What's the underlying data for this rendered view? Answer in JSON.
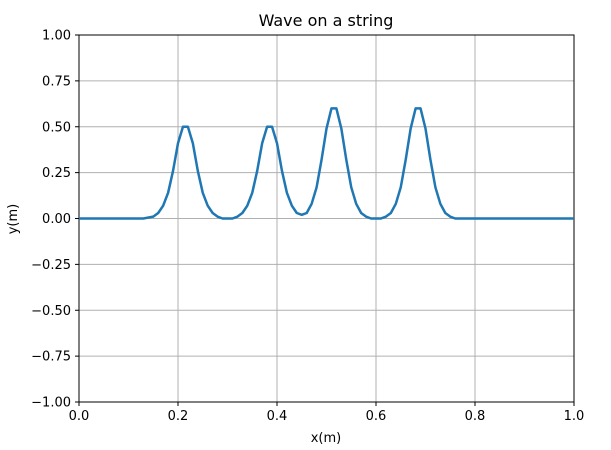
{
  "chart_data": {
    "type": "line",
    "title": "Wave on a string",
    "xlabel": "x(m)",
    "ylabel": "y(m)",
    "xlim": [
      0.0,
      1.0
    ],
    "ylim": [
      -1.0,
      1.0
    ],
    "grid": true,
    "x_ticks": [
      0.0,
      0.2,
      0.4,
      0.6,
      0.8,
      1.0
    ],
    "x_tick_labels": [
      "0.0",
      "0.2",
      "0.4",
      "0.6",
      "0.8",
      "1.0"
    ],
    "y_ticks": [
      -1.0,
      -0.75,
      -0.5,
      -0.25,
      0.0,
      0.25,
      0.5,
      0.75,
      1.0
    ],
    "y_tick_labels": [
      "−1.00",
      "−0.75",
      "−0.50",
      "−0.25",
      "0.00",
      "0.25",
      "0.50",
      "0.75",
      "1.00"
    ],
    "line_color": "#1f77b4",
    "series": [
      {
        "x": [
          0.0,
          0.1,
          0.13,
          0.15,
          0.16,
          0.17,
          0.18,
          0.19,
          0.2,
          0.21,
          0.22,
          0.23,
          0.24,
          0.25,
          0.26,
          0.27,
          0.28,
          0.29,
          0.3,
          0.31,
          0.32,
          0.33,
          0.34,
          0.35,
          0.36,
          0.37,
          0.38,
          0.39,
          0.4,
          0.41,
          0.42,
          0.43,
          0.44,
          0.45,
          0.46,
          0.47,
          0.48,
          0.49,
          0.5,
          0.51,
          0.52,
          0.53,
          0.54,
          0.55,
          0.56,
          0.57,
          0.58,
          0.59,
          0.6,
          0.61,
          0.62,
          0.63,
          0.64,
          0.65,
          0.66,
          0.67,
          0.68,
          0.69,
          0.7,
          0.71,
          0.72,
          0.73,
          0.74,
          0.75,
          0.76,
          0.78,
          0.8,
          0.9,
          1.0
        ],
        "y": [
          0.0,
          0.0,
          0.0,
          0.01,
          0.03,
          0.07,
          0.14,
          0.26,
          0.41,
          0.5,
          0.5,
          0.41,
          0.26,
          0.14,
          0.07,
          0.03,
          0.01,
          0.0,
          0.0,
          0.0,
          0.01,
          0.03,
          0.07,
          0.14,
          0.26,
          0.41,
          0.5,
          0.5,
          0.41,
          0.26,
          0.14,
          0.07,
          0.03,
          0.02,
          0.03,
          0.08,
          0.17,
          0.32,
          0.49,
          0.6,
          0.6,
          0.49,
          0.32,
          0.17,
          0.08,
          0.03,
          0.01,
          0.0,
          0.0,
          0.0,
          0.01,
          0.03,
          0.08,
          0.17,
          0.32,
          0.49,
          0.6,
          0.6,
          0.49,
          0.32,
          0.17,
          0.08,
          0.03,
          0.01,
          0.0,
          0.0,
          0.0,
          0.0,
          0.0
        ]
      }
    ]
  }
}
